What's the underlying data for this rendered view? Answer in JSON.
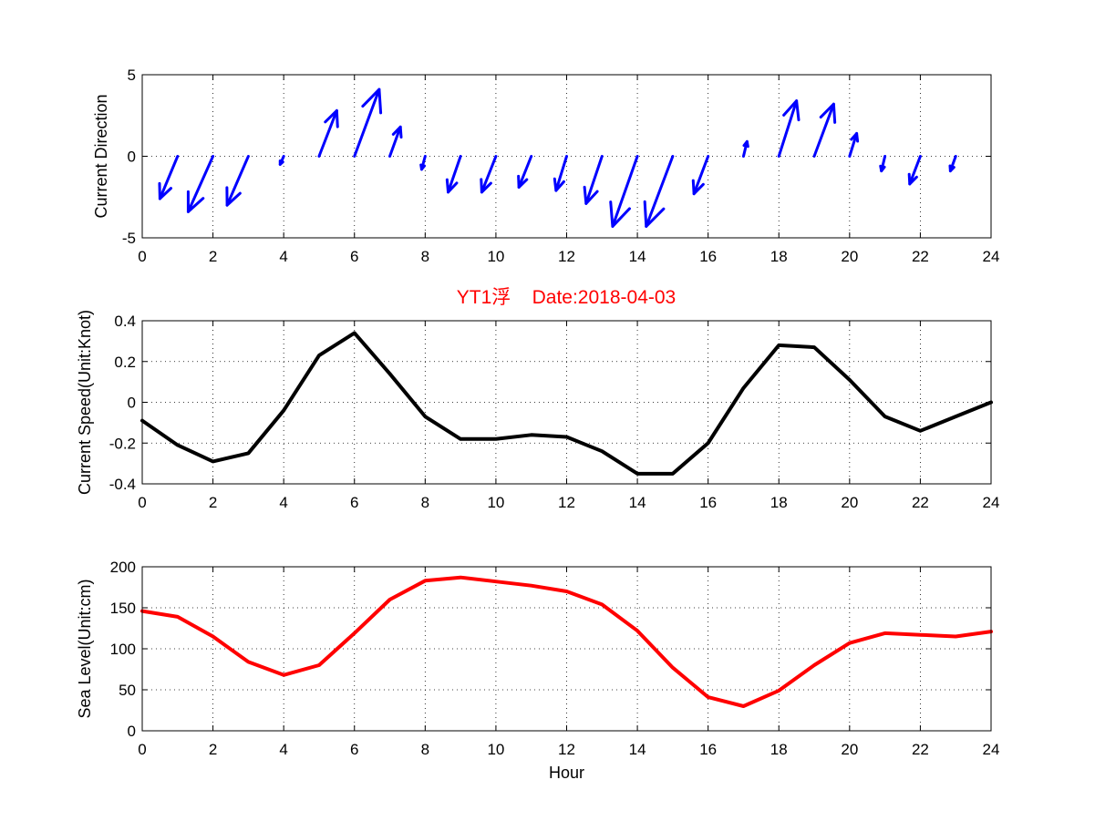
{
  "title": "YT1浮    Date:2018-04-03",
  "colors": {
    "direction": "#0000ff",
    "speed": "#000000",
    "sea_level": "#ff0000",
    "title": "#ff0000"
  },
  "chart_data": [
    {
      "type": "quiver",
      "ylabel": "Current Direction",
      "xlim": [
        0,
        24
      ],
      "ylim": [
        -5,
        5
      ],
      "xticks": [
        0,
        2,
        4,
        6,
        8,
        10,
        12,
        14,
        16,
        18,
        20,
        22,
        24
      ],
      "yticks": [
        -5,
        0,
        5
      ],
      "grid": true,
      "x": [
        1,
        2,
        3,
        4,
        5,
        6,
        7,
        8,
        9,
        10,
        11,
        12,
        13,
        14,
        15,
        16,
        17,
        18,
        19,
        20,
        21,
        22,
        23
      ],
      "u": [
        -0.5,
        -0.7,
        -0.6,
        -0.1,
        0.5,
        0.7,
        0.3,
        -0.1,
        -0.35,
        -0.4,
        -0.35,
        -0.3,
        -0.45,
        -0.7,
        -0.75,
        -0.4,
        0.1,
        0.5,
        0.55,
        0.2,
        -0.1,
        -0.3,
        -0.15
      ],
      "v": [
        -2.6,
        -3.4,
        -3.0,
        -0.5,
        2.8,
        4.1,
        1.8,
        -0.8,
        -2.2,
        -2.2,
        -1.9,
        -2.1,
        -2.9,
        -4.3,
        -4.3,
        -2.3,
        0.9,
        3.4,
        3.2,
        1.4,
        -0.9,
        -1.7,
        -0.9
      ]
    },
    {
      "type": "line",
      "ylabel": "Current Speed(Unit:Knot)",
      "xlim": [
        0,
        24
      ],
      "ylim": [
        -0.4,
        0.4
      ],
      "xticks": [
        0,
        2,
        4,
        6,
        8,
        10,
        12,
        14,
        16,
        18,
        20,
        22,
        24
      ],
      "yticks": [
        -0.4,
        -0.2,
        0,
        0.2,
        0.4
      ],
      "grid": true,
      "x": [
        0,
        1,
        2,
        3,
        4,
        5,
        6,
        7,
        8,
        9,
        10,
        11,
        12,
        13,
        14,
        15,
        16,
        17,
        18,
        19,
        20,
        21,
        22,
        23,
        24
      ],
      "y": [
        -0.09,
        -0.21,
        -0.29,
        -0.25,
        -0.04,
        0.23,
        0.34,
        0.14,
        -0.07,
        -0.18,
        -0.18,
        -0.16,
        -0.17,
        -0.24,
        -0.35,
        -0.35,
        -0.2,
        0.07,
        0.28,
        0.27,
        0.11,
        -0.07,
        -0.14,
        -0.07,
        0.0
      ]
    },
    {
      "type": "line",
      "ylabel": "Sea Level(Unit:cm)",
      "xlabel": "Hour",
      "xlim": [
        0,
        24
      ],
      "ylim": [
        0,
        200
      ],
      "xticks": [
        0,
        2,
        4,
        6,
        8,
        10,
        12,
        14,
        16,
        18,
        20,
        22,
        24
      ],
      "yticks": [
        0,
        50,
        100,
        150,
        200
      ],
      "grid": true,
      "x": [
        0,
        1,
        2,
        3,
        4,
        5,
        6,
        7,
        8,
        9,
        10,
        11,
        12,
        13,
        14,
        15,
        16,
        17,
        18,
        19,
        20,
        21,
        22,
        23,
        24
      ],
      "y": [
        146,
        139,
        115,
        84,
        68,
        80,
        119,
        160,
        183,
        187,
        182,
        177,
        170,
        154,
        122,
        77,
        41,
        30,
        49,
        80,
        107,
        119,
        117,
        115,
        121
      ]
    }
  ]
}
